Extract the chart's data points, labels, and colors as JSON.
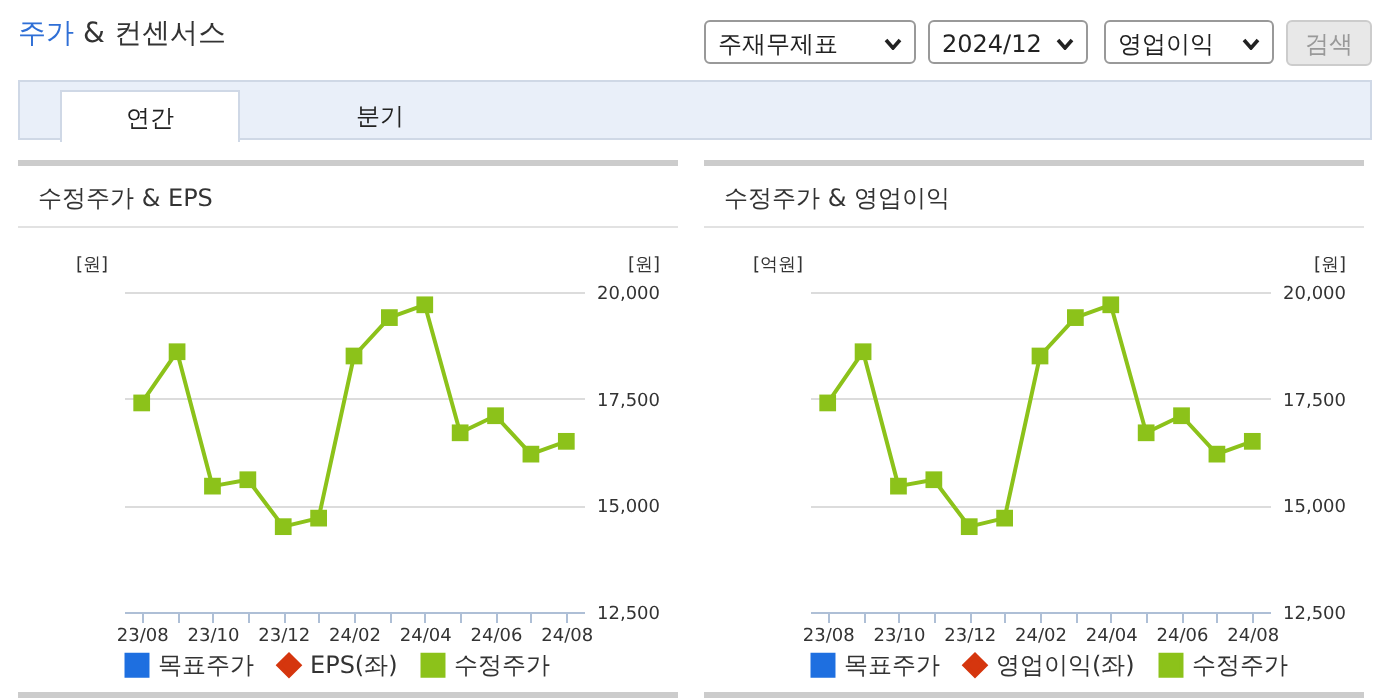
{
  "chart_data": [
    {
      "type": "other",
      "title": "주가 & 컨센서스",
      "annotations": [
        "주재무제표",
        "2024/12",
        "영업이익",
        "검색",
        "연간",
        "분기"
      ]
    },
    {
      "type": "line",
      "title": "수정주가 & EPS",
      "ylabel": "[원]",
      "y2label": "[원]",
      "categories": [
        "23/08",
        null,
        "23/10",
        null,
        "23/12",
        null,
        "24/02",
        null,
        "24/04",
        null,
        "24/06",
        null,
        "24/08"
      ],
      "y2lim": [
        12500,
        20000
      ],
      "y2ticks": [
        {
          "value": 12500,
          "label": "12,500"
        },
        {
          "value": 15000,
          "label": "15,000"
        },
        {
          "value": 17500,
          "label": "17,500"
        },
        {
          "value": 20000,
          "label": "20,000"
        }
      ],
      "grid": "y",
      "legend": "bottom",
      "series": [
        {
          "name": "목표주가",
          "color": "#1e6fe0",
          "marker": "square",
          "values": [
            null,
            null,
            null,
            null,
            null,
            null,
            null,
            null,
            null,
            null,
            null,
            null,
            null
          ]
        },
        {
          "name": "EPS(좌)",
          "color": "#d5360e",
          "marker": "diamond",
          "values": [
            null,
            null,
            null,
            null,
            null,
            null,
            null,
            null,
            null,
            null,
            null,
            null,
            null
          ]
        },
        {
          "name": "수정주가",
          "color": "#8cc21a",
          "marker": "square",
          "axis": "y2",
          "values": [
            17400,
            18600,
            15450,
            15600,
            14500,
            14700,
            18500,
            19400,
            19700,
            16700,
            17100,
            16200,
            16500
          ]
        }
      ]
    },
    {
      "type": "line",
      "title": "수정주가 & 영업이익",
      "ylabel": "[억원]",
      "y2label": "[원]",
      "categories": [
        "23/08",
        null,
        "23/10",
        null,
        "23/12",
        null,
        "24/02",
        null,
        "24/04",
        null,
        "24/06",
        null,
        "24/08"
      ],
      "y2lim": [
        12500,
        20000
      ],
      "y2ticks": [
        {
          "value": 12500,
          "label": "12,500"
        },
        {
          "value": 15000,
          "label": "15,000"
        },
        {
          "value": 17500,
          "label": "17,500"
        },
        {
          "value": 20000,
          "label": "20,000"
        }
      ],
      "grid": "y",
      "legend": "bottom",
      "series": [
        {
          "name": "목표주가",
          "color": "#1e6fe0",
          "marker": "square",
          "values": [
            null,
            null,
            null,
            null,
            null,
            null,
            null,
            null,
            null,
            null,
            null,
            null,
            null
          ]
        },
        {
          "name": "영업이익(좌)",
          "color": "#d5360e",
          "marker": "diamond",
          "values": [
            null,
            null,
            null,
            null,
            null,
            null,
            null,
            null,
            null,
            null,
            null,
            null,
            null
          ]
        },
        {
          "name": "수정주가",
          "color": "#8cc21a",
          "marker": "square",
          "axis": "y2",
          "values": [
            17400,
            18600,
            15450,
            15600,
            14500,
            14700,
            18500,
            19400,
            19700,
            16700,
            17100,
            16200,
            16500
          ]
        }
      ]
    }
  ]
}
